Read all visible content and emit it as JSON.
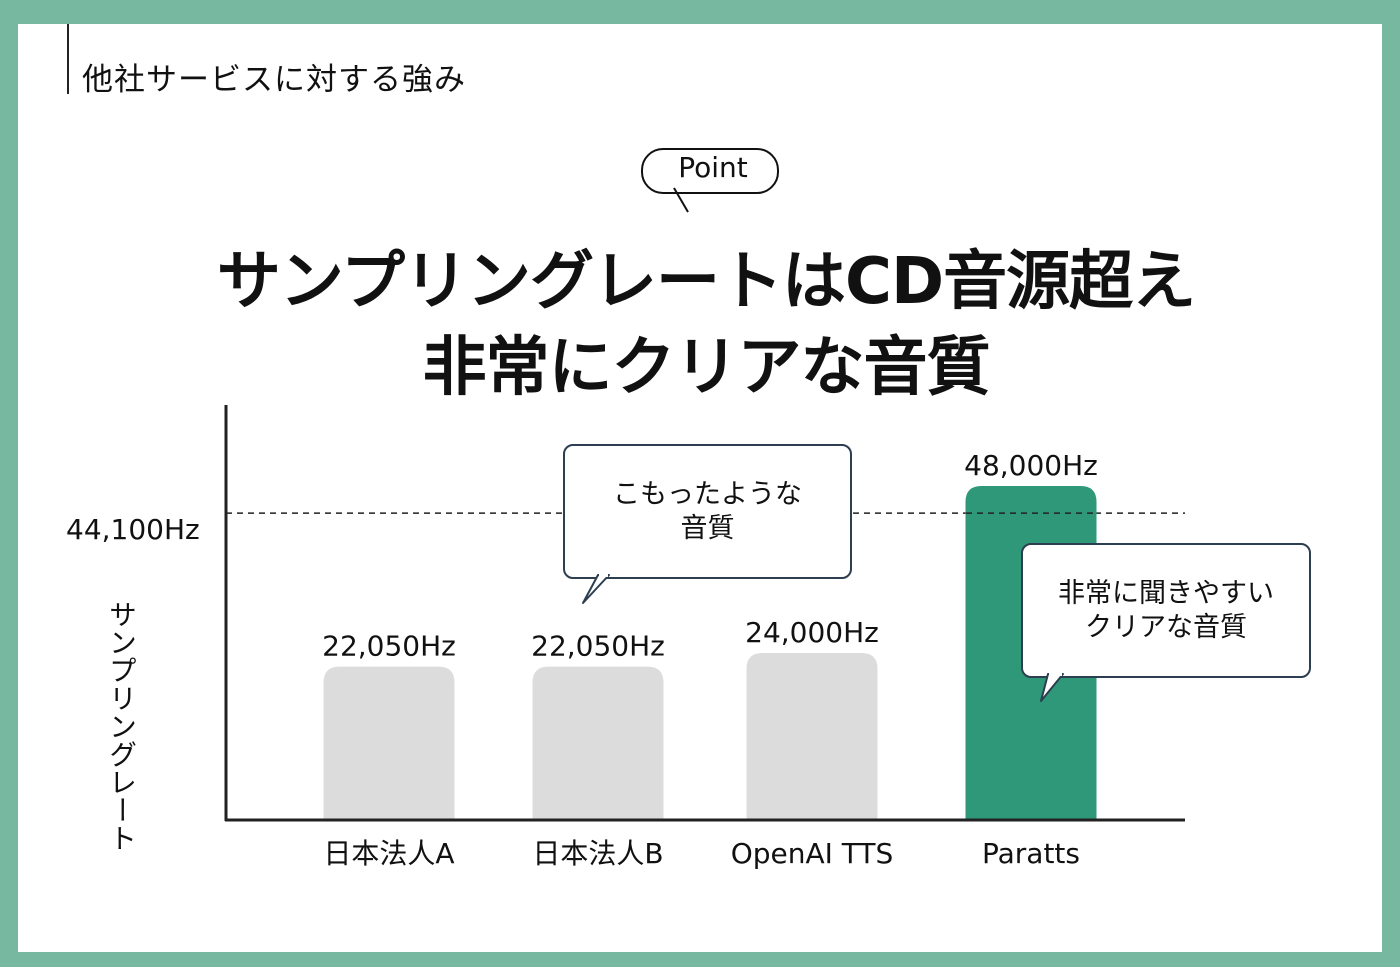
{
  "section_title": "他社サービスに対する強み",
  "point_badge": "Point",
  "headline": {
    "line1": "サンプリングレートはCD音源超え",
    "line2": "非常にクリアな音質"
  },
  "callouts": {
    "muffled": "こもったような\n音質",
    "clear": "非常に聞きやすい\nクリアな音質"
  },
  "colors": {
    "frame": "#77b8a0",
    "highlight_bar": "#2e9878",
    "other_bar": "#dcdcdc",
    "axis": "#222222"
  },
  "chart_data": {
    "type": "bar",
    "title": "",
    "xlabel": "",
    "ylabel": "サンプリングレート",
    "categories": [
      "日本法人A",
      "日本法人B",
      "OpenAI TTS",
      "Paratts"
    ],
    "values": [
      22050,
      22050,
      24000,
      48000
    ],
    "value_labels": [
      "22,050Hz",
      "22,050Hz",
      "24,000Hz",
      "48,000Hz"
    ],
    "highlight_category": "Paratts",
    "reference_line": {
      "value": 44100,
      "label": "44,100Hz",
      "style": "dashed"
    },
    "ylim": [
      0,
      52000
    ],
    "grid": false,
    "legend": "none"
  }
}
